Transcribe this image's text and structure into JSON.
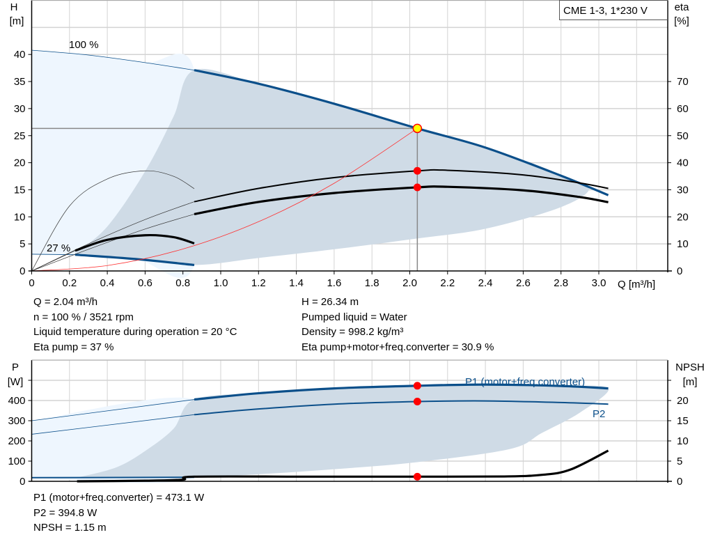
{
  "chart_data": [
    {
      "type": "line",
      "title": "CME 1-3, 1*230 V",
      "xlabel": "Q [m³/h]",
      "ylabel": "H\n[m]",
      "ylabel_line1": "H",
      "ylabel_line2": "[m]",
      "y2label_line1": "eta",
      "y2label_line2": "[%]",
      "xlim": [
        0,
        3.36
      ],
      "ylim": [
        0,
        50
      ],
      "y2lim": [
        0,
        100
      ],
      "xticks": [
        "0",
        "0.2",
        "0.4",
        "0.6",
        "0.8",
        "1.0",
        "1.2",
        "1.4",
        "1.6",
        "1.8",
        "2.0",
        "2.2",
        "2.4",
        "2.6",
        "2.8",
        "3.0"
      ],
      "yticks": [
        "0",
        "5",
        "10",
        "15",
        "20",
        "25",
        "30",
        "35",
        "40"
      ],
      "y2ticks": [
        "0",
        "10",
        "20",
        "30",
        "40",
        "50",
        "60",
        "70"
      ],
      "grid": true,
      "speed_labels": [
        "100 %",
        "27 %"
      ],
      "colors": {
        "head": "#0b4f8a",
        "system": "#ff3030",
        "eta": "#000000",
        "region_light": "#eef6fe",
        "region_dark": "#cfdbe6",
        "dot": "#ff0000",
        "op_point": "#ffff00"
      },
      "regions": {
        "light": [
          [
            0,
            40.8
          ],
          [
            0.3,
            39.9
          ],
          [
            0.6,
            38.5
          ],
          [
            0.86,
            37.1
          ],
          [
            0.86,
            1.1
          ],
          [
            0.55,
            2.2
          ],
          [
            0.23,
            3.0
          ],
          [
            0,
            3.1
          ]
        ],
        "dark": [
          [
            0.23,
            3.3
          ],
          [
            0.4,
            8.2
          ],
          [
            0.6,
            18.4
          ],
          [
            0.75,
            28.5
          ],
          [
            0.86,
            37.1
          ],
          [
            1.2,
            34.6
          ],
          [
            1.6,
            30.9
          ],
          [
            2.04,
            26.34
          ],
          [
            2.4,
            22.8
          ],
          [
            2.8,
            17.6
          ],
          [
            2.95,
            15.3
          ],
          [
            2.8,
            11.8
          ],
          [
            2.4,
            7.8
          ],
          [
            2.04,
            6.0
          ],
          [
            1.6,
            4.0
          ],
          [
            1.2,
            2.4
          ],
          [
            0.86,
            1.1
          ],
          [
            0.55,
            2.2
          ],
          [
            0.23,
            3.0
          ]
        ]
      },
      "series": [
        {
          "axis": "H",
          "style": "thin-blue",
          "points": [
            [
              0,
              40.8
            ],
            [
              0.3,
              39.9
            ],
            [
              0.6,
              38.5
            ],
            [
              0.86,
              37.1
            ]
          ]
        },
        {
          "axis": "H",
          "style": "thick-blue",
          "points": [
            [
              0.86,
              37.1
            ],
            [
              1.2,
              34.6
            ],
            [
              1.6,
              30.9
            ],
            [
              2.04,
              26.34
            ],
            [
              2.4,
              22.8
            ],
            [
              2.8,
              17.6
            ],
            [
              3.05,
              14.0
            ]
          ]
        },
        {
          "axis": "H",
          "style": "thin-blue",
          "points": [
            [
              0,
              3.1
            ],
            [
              0.23,
              3.0
            ]
          ]
        },
        {
          "axis": "H",
          "style": "thick-blue",
          "points": [
            [
              0.23,
              3.0
            ],
            [
              0.55,
              2.2
            ],
            [
              0.86,
              1.1
            ]
          ]
        },
        {
          "axis": "eta",
          "style": "thin-black",
          "points": [
            [
              0,
              0
            ],
            [
              0.3,
              10
            ],
            [
              0.6,
              19
            ],
            [
              0.86,
              25.6
            ]
          ]
        },
        {
          "axis": "eta",
          "style": "mid-black",
          "points": [
            [
              0.86,
              25.6
            ],
            [
              1.2,
              30.5
            ],
            [
              1.6,
              34.5
            ],
            [
              2.04,
              37
            ],
            [
              2.2,
              37.2
            ],
            [
              2.6,
              35.5
            ],
            [
              2.9,
              32.5
            ],
            [
              3.05,
              30.5
            ]
          ]
        },
        {
          "axis": "eta",
          "style": "thin-black",
          "points": [
            [
              0,
              0
            ],
            [
              0.3,
              8
            ],
            [
              0.6,
              15.5
            ],
            [
              0.86,
              21
            ]
          ]
        },
        {
          "axis": "eta",
          "style": "thick-black",
          "points": [
            [
              0.86,
              21
            ],
            [
              1.2,
              25.5
            ],
            [
              1.6,
              28.8
            ],
            [
              2.04,
              30.9
            ],
            [
              2.2,
              31.1
            ],
            [
              2.6,
              29.8
            ],
            [
              2.9,
              27.3
            ],
            [
              3.05,
              25.4
            ]
          ]
        },
        {
          "axis": "eta",
          "style": "thin-black",
          "points": [
            [
              0,
              0
            ],
            [
              0.2,
              24
            ],
            [
              0.4,
              34
            ],
            [
              0.6,
              37
            ],
            [
              0.75,
              35
            ],
            [
              0.86,
              30.4
            ]
          ]
        },
        {
          "axis": "eta",
          "style": "thin-black",
          "points": [
            [
              0,
              0
            ],
            [
              0.23,
              7.5
            ]
          ]
        },
        {
          "axis": "eta",
          "style": "thick-black",
          "points": [
            [
              0.23,
              7.5
            ],
            [
              0.4,
              11.5
            ],
            [
              0.6,
              13.2
            ],
            [
              0.75,
              12.5
            ],
            [
              0.86,
              10.2
            ]
          ]
        },
        {
          "axis": "H",
          "style": "system-red",
          "points": [
            [
              0,
              0
            ],
            [
              0.4,
              1.0
            ],
            [
              0.8,
              4.05
            ],
            [
              1.2,
              9.1
            ],
            [
              1.6,
              16.2
            ],
            [
              2.04,
              26.34
            ]
          ]
        }
      ],
      "operating_point": {
        "Q": 2.04,
        "H": 26.34
      },
      "markers": [
        {
          "axis": "eta",
          "Q": 2.04,
          "value": 37
        },
        {
          "axis": "eta",
          "Q": 2.04,
          "value": 30.9
        }
      ]
    },
    {
      "type": "line",
      "ylabel_line1": "P",
      "ylabel_line2": "[W]",
      "y2label_line1": "NPSH",
      "y2label_line2": "[m]",
      "xlim": [
        0,
        3.36
      ],
      "ylim": [
        0,
        600
      ],
      "y2lim": [
        0,
        30
      ],
      "yticks": [
        "0",
        "100",
        "200",
        "300",
        "400"
      ],
      "y2ticks": [
        "0",
        "5",
        "10",
        "15",
        "20"
      ],
      "grid": true,
      "series_labels": [
        "P1 (motor+freq.converter)",
        "P2"
      ],
      "regions": {
        "light": [
          [
            0,
            300
          ],
          [
            0.86,
            405
          ],
          [
            0.86,
            20
          ],
          [
            0,
            18
          ]
        ],
        "dark": [
          [
            0.25,
            20
          ],
          [
            0.45,
            70
          ],
          [
            0.6,
            150
          ],
          [
            0.75,
            260
          ],
          [
            0.86,
            405
          ],
          [
            1.2,
            436
          ],
          [
            1.6,
            460
          ],
          [
            2.04,
            473.1
          ],
          [
            2.4,
            479
          ],
          [
            2.8,
            472
          ],
          [
            3.05,
            460
          ],
          [
            2.9,
            340
          ],
          [
            2.7,
            240
          ],
          [
            2.53,
            160
          ],
          [
            2.04,
            95
          ],
          [
            1.6,
            60
          ],
          [
            1.2,
            35
          ],
          [
            0.86,
            22
          ],
          [
            0.25,
            20
          ]
        ]
      },
      "series": [
        {
          "name": "P1 (motor+freq.converter)",
          "axis": "P",
          "style": "thin-blue",
          "points": [
            [
              0,
              300
            ],
            [
              0.86,
              405
            ]
          ]
        },
        {
          "name": "P1 (motor+freq.converter)",
          "axis": "P",
          "style": "thick-blue",
          "points": [
            [
              0.86,
              405
            ],
            [
              1.2,
              436
            ],
            [
              1.6,
              460
            ],
            [
              2.04,
              473.1
            ],
            [
              2.4,
              479
            ],
            [
              2.8,
              472
            ],
            [
              3.05,
              460
            ]
          ]
        },
        {
          "name": "P2",
          "axis": "P",
          "style": "thin-blue",
          "points": [
            [
              0,
              233
            ],
            [
              0.86,
              330
            ]
          ]
        },
        {
          "name": "P2",
          "axis": "P",
          "style": "mid-blue",
          "points": [
            [
              0.86,
              330
            ],
            [
              1.2,
              358
            ],
            [
              1.6,
              382
            ],
            [
              2.04,
              394.8
            ],
            [
              2.4,
              398
            ],
            [
              2.8,
              390
            ],
            [
              3.05,
              382
            ]
          ]
        },
        {
          "axis": "P",
          "style": "mid-blue",
          "points": [
            [
              0,
              18
            ],
            [
              0.86,
              20
            ]
          ]
        },
        {
          "axis": "NPSH",
          "style": "thick-black",
          "points": [
            [
              0.24,
              0
            ],
            [
              0.6,
              0.15
            ],
            [
              0.8,
              0.4
            ],
            [
              0.86,
              1.15
            ],
            [
              1.5,
              1.15
            ],
            [
              2.04,
              1.15
            ],
            [
              2.5,
              1.2
            ],
            [
              2.7,
              1.6
            ],
            [
              2.85,
              2.9
            ],
            [
              3.05,
              7.6
            ]
          ]
        }
      ],
      "markers": [
        {
          "axis": "P",
          "Q": 2.04,
          "value": 473.1
        },
        {
          "axis": "P",
          "Q": 2.04,
          "value": 394.8
        },
        {
          "axis": "NPSH",
          "Q": 2.04,
          "value": 1.15
        }
      ]
    }
  ],
  "info_top": {
    "left": [
      "Q = 2.04 m³/h",
      "n = 100 % / 3521 rpm",
      "Liquid temperature during operation = 20 °C",
      "Eta pump = 37 %"
    ],
    "right": [
      "H = 26.34 m",
      "Pumped liquid = Water",
      "Density = 998.2 kg/m³",
      "Eta pump+motor+freq.converter = 30.9 %"
    ]
  },
  "info_bottom": [
    "P1 (motor+freq.converter) = 473.1 W",
    "P2 = 394.8 W",
    "NPSH = 1.15 m"
  ]
}
